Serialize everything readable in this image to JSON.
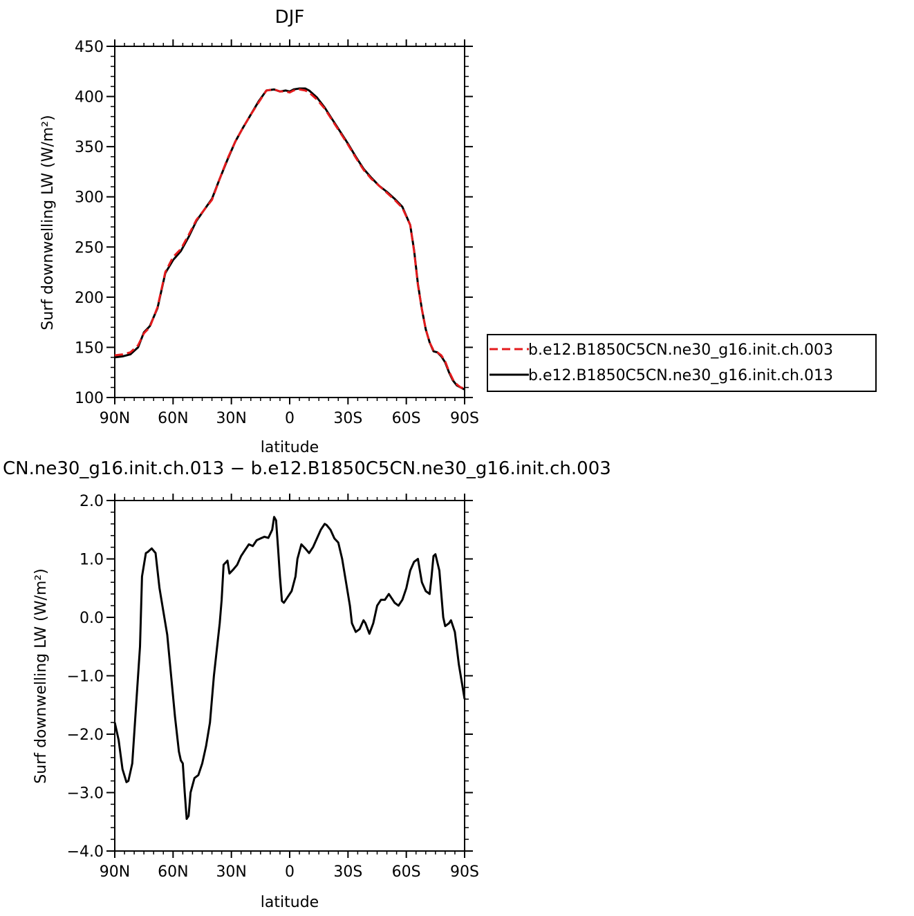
{
  "chart_data": [
    {
      "type": "line",
      "title": "DJF",
      "xlabel": "latitude",
      "ylabel": "Surf  downwelling LW (W/m²)",
      "xlim": [
        90,
        -90
      ],
      "ylim": [
        100,
        450
      ],
      "xticks": [
        {
          "value": 90,
          "label": "90N"
        },
        {
          "value": 60,
          "label": "60N"
        },
        {
          "value": 30,
          "label": "30N"
        },
        {
          "value": 0,
          "label": "0"
        },
        {
          "value": -30,
          "label": "30S"
        },
        {
          "value": -60,
          "label": "60S"
        },
        {
          "value": -90,
          "label": "90S"
        }
      ],
      "yticks": [
        {
          "value": 100,
          "label": "100"
        },
        {
          "value": 150,
          "label": "150"
        },
        {
          "value": 200,
          "label": "200"
        },
        {
          "value": 250,
          "label": "250"
        },
        {
          "value": 300,
          "label": "300"
        },
        {
          "value": 350,
          "label": "350"
        },
        {
          "value": 400,
          "label": "400"
        },
        {
          "value": 450,
          "label": "450"
        }
      ],
      "legend": "right",
      "series": [
        {
          "name": "b.e12.B1850C5CN.ne30_g16.init.ch.003",
          "color": "#e41a1c",
          "dash": "dashed",
          "x": [
            90,
            86,
            82,
            78,
            75,
            72,
            68,
            64,
            60,
            56,
            52,
            48,
            44,
            40,
            36,
            32,
            28,
            24,
            20,
            16,
            12,
            8,
            5,
            2,
            0,
            -2,
            -5,
            -8,
            -10,
            -14,
            -18,
            -22,
            -26,
            -30,
            -34,
            -38,
            -42,
            -46,
            -50,
            -54,
            -58,
            -62,
            -64,
            -66,
            -68,
            -70,
            -72,
            -74,
            -76,
            -78,
            -80,
            -82,
            -84,
            -86,
            -88,
            -90
          ],
          "values": [
            142,
            143,
            145,
            152,
            164,
            170,
            190,
            225,
            240,
            248,
            262,
            277,
            287,
            297,
            318,
            338,
            355,
            369,
            382,
            394,
            406,
            407,
            405,
            405,
            404,
            406,
            407,
            406,
            404,
            397,
            388,
            376,
            364,
            352,
            339,
            327,
            318,
            311,
            304,
            297,
            289,
            272,
            246,
            212,
            188,
            168,
            155,
            147,
            145,
            142,
            136,
            126,
            118,
            113,
            110,
            109
          ]
        },
        {
          "name": "b.e12.B1850C5CN.ne30_g16.init.ch.013",
          "color": "#000000",
          "dash": "solid",
          "x": [
            90,
            86,
            82,
            78,
            75,
            72,
            68,
            64,
            60,
            56,
            52,
            48,
            44,
            40,
            36,
            32,
            28,
            24,
            20,
            16,
            12,
            8,
            5,
            2,
            0,
            -2,
            -5,
            -8,
            -10,
            -14,
            -18,
            -22,
            -26,
            -30,
            -34,
            -38,
            -42,
            -46,
            -50,
            -54,
            -58,
            -62,
            -64,
            -66,
            -68,
            -70,
            -72,
            -74,
            -76,
            -78,
            -80,
            -82,
            -84,
            -86,
            -88,
            -90
          ],
          "values": [
            140,
            141,
            143,
            150,
            165,
            171,
            189,
            224,
            237,
            246,
            260,
            276,
            287,
            298,
            318,
            337,
            355,
            369,
            382,
            395,
            406,
            407,
            405,
            406,
            405,
            407,
            408,
            408,
            406,
            399,
            389,
            377,
            365,
            353,
            340,
            328,
            319,
            311,
            305,
            298,
            290,
            272,
            247,
            213,
            188,
            168,
            155,
            146,
            145,
            141,
            135,
            125,
            117,
            112,
            110,
            108
          ]
        }
      ]
    },
    {
      "type": "line",
      "title": "CN.ne30_g16.init.ch.013 − b.e12.B1850C5CN.ne30_g16.init.ch.003",
      "xlabel": "latitude",
      "ylabel": "Surf  downwelling LW (W/m²)",
      "xlim": [
        90,
        -90
      ],
      "ylim": [
        -4.0,
        2.0
      ],
      "xticks": [
        {
          "value": 90,
          "label": "90N"
        },
        {
          "value": 60,
          "label": "60N"
        },
        {
          "value": 30,
          "label": "30N"
        },
        {
          "value": 0,
          "label": "0"
        },
        {
          "value": -30,
          "label": "30S"
        },
        {
          "value": -60,
          "label": "60S"
        },
        {
          "value": -90,
          "label": "90S"
        }
      ],
      "yticks": [
        {
          "value": -4.0,
          "label": "−4.0"
        },
        {
          "value": -3.0,
          "label": "−3.0"
        },
        {
          "value": -2.0,
          "label": "−2.0"
        },
        {
          "value": -1.0,
          "label": "−1.0"
        },
        {
          "value": 0.0,
          "label": "0.0"
        },
        {
          "value": 1.0,
          "label": "1.0"
        },
        {
          "value": 2.0,
          "label": "2.0"
        }
      ],
      "series": [
        {
          "color": "#000000",
          "dash": "solid",
          "x": [
            90,
            88,
            86,
            84,
            83,
            81,
            79,
            77,
            76,
            74,
            73,
            71,
            69,
            67,
            65,
            63,
            61,
            59,
            57,
            56,
            55,
            54,
            53,
            52,
            51,
            49,
            47,
            45,
            43,
            41,
            39,
            37,
            36,
            35,
            34,
            32,
            31,
            29,
            27,
            25,
            23,
            21,
            19,
            17,
            15,
            13,
            11,
            9,
            8,
            7,
            6,
            5,
            4,
            3,
            1,
            -1,
            -3,
            -4,
            -6,
            -8,
            -10,
            -12,
            -14,
            -16,
            -18,
            -19,
            -21,
            -23,
            -25,
            -27,
            -29,
            -31,
            -32,
            -34,
            -36,
            -38,
            -39,
            -41,
            -43,
            -45,
            -47,
            -49,
            -51,
            -53,
            -54,
            -56,
            -58,
            -60,
            -62,
            -64,
            -66,
            -67,
            -68,
            -70,
            -72,
            -73,
            -74,
            -75,
            -77,
            -78,
            -79,
            -80,
            -82,
            -83,
            -85,
            -87,
            -88,
            -90
          ],
          "values": [
            -1.8,
            -2.1,
            -2.6,
            -2.82,
            -2.8,
            -2.5,
            -1.5,
            -0.5,
            0.7,
            1.1,
            1.12,
            1.18,
            1.1,
            0.5,
            0.1,
            -0.3,
            -1.0,
            -1.7,
            -2.3,
            -2.45,
            -2.5,
            -3.0,
            -3.45,
            -3.4,
            -3.0,
            -2.75,
            -2.7,
            -2.5,
            -2.2,
            -1.8,
            -1.0,
            -0.4,
            -0.1,
            0.3,
            0.9,
            0.97,
            0.75,
            0.82,
            0.9,
            1.05,
            1.15,
            1.25,
            1.22,
            1.32,
            1.35,
            1.38,
            1.36,
            1.5,
            1.72,
            1.66,
            1.2,
            0.7,
            0.28,
            0.25,
            0.35,
            0.45,
            0.7,
            1.0,
            1.25,
            1.18,
            1.1,
            1.2,
            1.35,
            1.5,
            1.6,
            1.58,
            1.5,
            1.35,
            1.28,
            1.0,
            0.6,
            0.2,
            -0.1,
            -0.25,
            -0.2,
            -0.05,
            -0.1,
            -0.28,
            -0.1,
            0.2,
            0.3,
            0.3,
            0.4,
            0.3,
            0.25,
            0.2,
            0.3,
            0.5,
            0.8,
            0.95,
            1.0,
            0.8,
            0.6,
            0.45,
            0.4,
            0.7,
            1.05,
            1.08,
            0.8,
            0.4,
            0.0,
            -0.15,
            -0.1,
            -0.05,
            -0.25,
            -0.8,
            -1.0,
            -1.4
          ]
        }
      ]
    }
  ]
}
